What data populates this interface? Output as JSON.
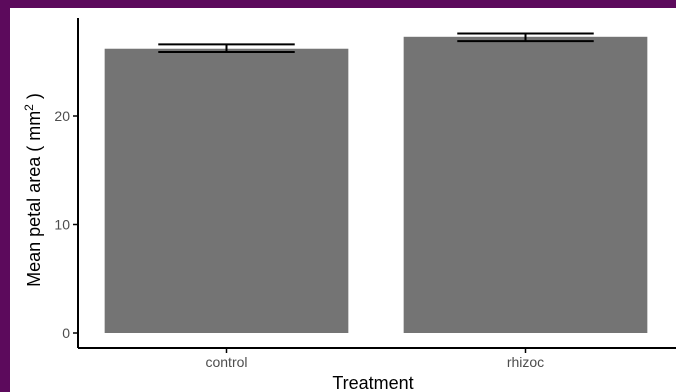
{
  "colors": {
    "frame": "#5c0a5c",
    "bar": "#747474",
    "axis": "#000000",
    "tick_label": "#4d4d4d"
  },
  "chart_data": {
    "type": "bar",
    "categories": [
      "control",
      "rhizoc"
    ],
    "values": [
      26.2,
      27.3
    ],
    "error_bars": [
      {
        "lower": 25.9,
        "upper": 26.6
      },
      {
        "lower": 26.9,
        "upper": 27.6
      }
    ],
    "xlabel": "Treatment",
    "ylabel_main": "Mean petal area ( mm",
    "ylabel_sup": "2",
    "ylabel_close": " )",
    "ylim": [
      0,
      29
    ],
    "yticks": [
      0,
      10,
      20
    ],
    "grid": false,
    "legend": "none"
  }
}
